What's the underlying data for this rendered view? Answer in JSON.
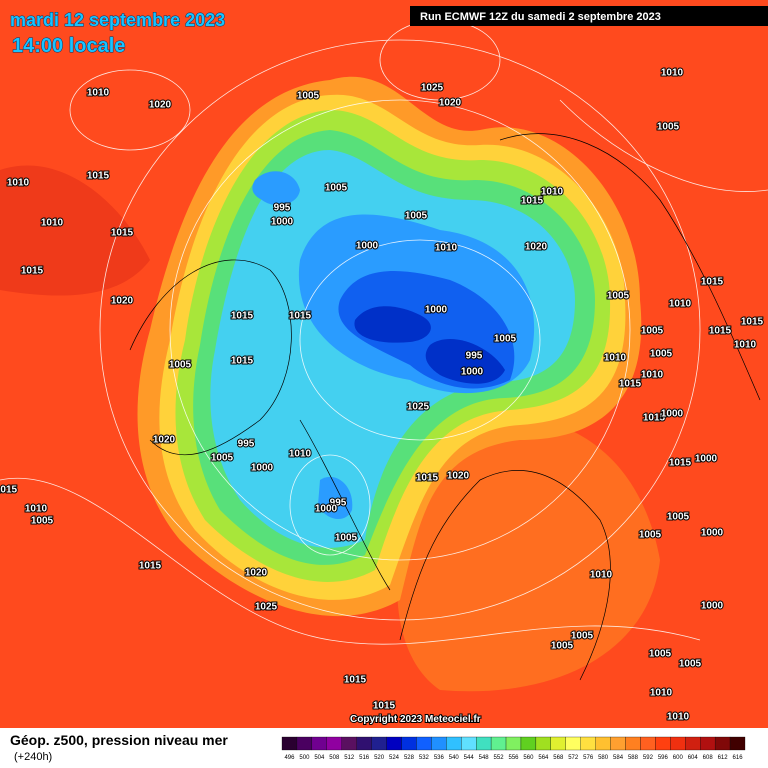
{
  "header": {
    "date": "mardi 12 septembre 2023",
    "time": "14:00 locale",
    "run": "Run ECMWF 12Z du samedi 2 septembre 2023"
  },
  "footer": {
    "title": "Géop. z500, pression niveau mer",
    "lead": "(+240h)",
    "copyright": "Copyright 2023 Meteociel.fr"
  },
  "legend": {
    "levels": [
      "496",
      "500",
      "504",
      "508",
      "512",
      "516",
      "520",
      "524",
      "528",
      "532",
      "536",
      "540",
      "544",
      "548",
      "552",
      "556",
      "560",
      "564",
      "568",
      "572",
      "576",
      "580",
      "584",
      "588",
      "592",
      "596",
      "600",
      "604",
      "608",
      "612",
      "616"
    ],
    "colors": [
      "#2a0030",
      "#4a0060",
      "#700090",
      "#9000a0",
      "#5a1060",
      "#301070",
      "#202090",
      "#0000c0",
      "#0030e0",
      "#1060ff",
      "#2090ff",
      "#30c0ff",
      "#60e0ff",
      "#40e0c0",
      "#60f090",
      "#80f060",
      "#60d020",
      "#a0e020",
      "#e0f030",
      "#ffff60",
      "#ffe040",
      "#ffc030",
      "#ffa030",
      "#ff8020",
      "#ff6020",
      "#ff4010",
      "#f03010",
      "#d02010",
      "#b01010",
      "#800808",
      "#400000"
    ]
  },
  "isobar_labels": [
    "1010",
    "1020",
    "1005",
    "1025",
    "1020",
    "1010",
    "1005",
    "1010",
    "1015",
    "1010",
    "1015",
    "995",
    "1000",
    "1005",
    "1005",
    "1010",
    "1015",
    "1020",
    "1000",
    "1010",
    "1015",
    "1020",
    "1015",
    "1015",
    "1005",
    "1010",
    "1015",
    "1000",
    "1005",
    "995",
    "1000",
    "1005",
    "1015",
    "1005",
    "1010",
    "1005",
    "1015",
    "1010",
    "1015",
    "1025",
    "1015",
    "1000",
    "1020",
    "995",
    "1005",
    "1010",
    "1000",
    "1015",
    "1020",
    "1015",
    "1000",
    "995",
    "1000",
    "1010",
    "1005",
    "1015",
    "1005",
    "1005",
    "1005",
    "1000",
    "1015",
    "1020",
    "1010",
    "1025",
    "1000",
    "1005",
    "1005",
    "1005",
    "1005",
    "1015",
    "1015",
    "1010",
    "1010",
    "1015",
    "1010"
  ]
}
